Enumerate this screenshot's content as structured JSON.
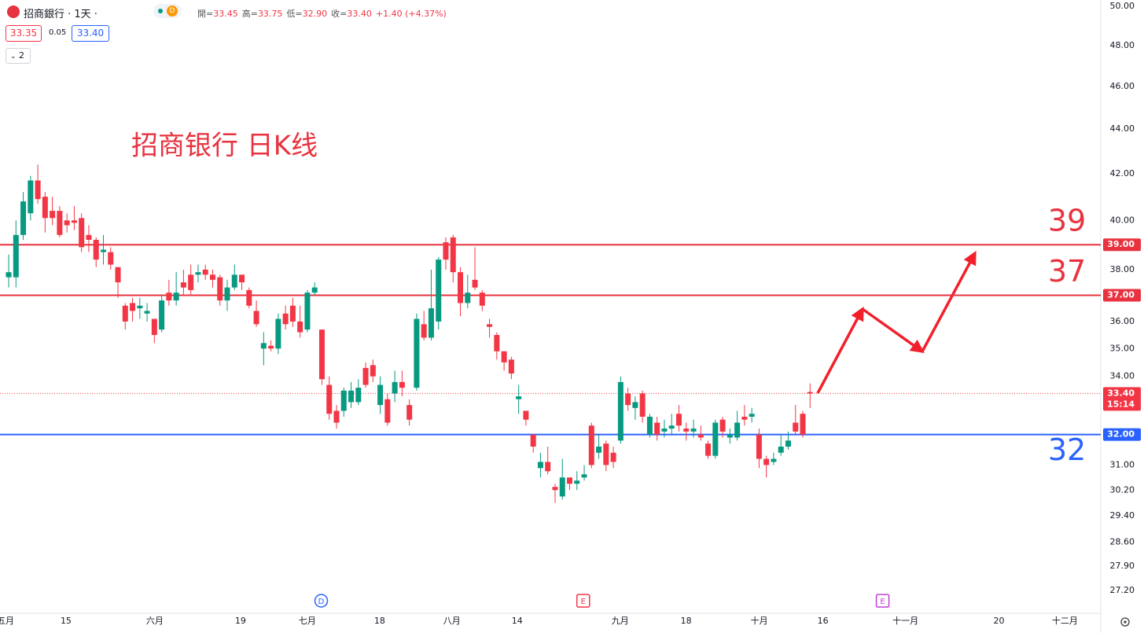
{
  "header": {
    "symbol": "招商銀行 · 1天 ·",
    "badge": "D",
    "ohlc": [
      {
        "label": "開=",
        "value": "33.45"
      },
      {
        "label": "高=",
        "value": "33.75"
      },
      {
        "label": "低=",
        "value": "32.90"
      },
      {
        "label": "收=",
        "value": "33.40"
      }
    ],
    "change": "+1.40 (+4.37%)",
    "bid": "33.35",
    "spread": "0.05",
    "ask": "33.40",
    "indicators": "2"
  },
  "chart_data": {
    "type": "candlestick",
    "title": "招商银行 日K线",
    "open": [
      37.7,
      37.7,
      39.4,
      40.3,
      41.7,
      41.0,
      40.4,
      40.4,
      40.0,
      40.0,
      40.1,
      39.4,
      39.2,
      38.7,
      38.7,
      38.1,
      36.6,
      36.7,
      36.5,
      36.3,
      36.1,
      35.7,
      37.1,
      36.8,
      37.5,
      37.8,
      37.8,
      38.0,
      37.8,
      37.7,
      36.8,
      37.3,
      37.8,
      37.2,
      36.4,
      35.0,
      35.1,
      35.0,
      36.3,
      36.6,
      36.0,
      35.7,
      37.1,
      35.7,
      33.7,
      32.8,
      32.8,
      33.1,
      33.1,
      34.3,
      34.4,
      33.0,
      33.2,
      33.4,
      33.8,
      33.0,
      33.6,
      35.9,
      35.4,
      36.0,
      39.1,
      39.3,
      37.9,
      36.7,
      37.6,
      37.1,
      35.9,
      35.5,
      34.9,
      34.6,
      33.2,
      32.8,
      32.0,
      30.9,
      31.1,
      30.3,
      30.0,
      30.6,
      30.4,
      30.6,
      32.3,
      31.4,
      31.7,
      31.4,
      31.8,
      33.4,
      32.9,
      33.4,
      32.0,
      32.4,
      32.1,
      32.2,
      32.7,
      32.2,
      32.1,
      32.0,
      31.7,
      31.3,
      32.5,
      31.9,
      31.9,
      32.6,
      32.6,
      32.0,
      31.2,
      31.1,
      31.4,
      31.6,
      32.4,
      32.7,
      33.45
    ],
    "high": [
      38.6,
      40.0,
      41.2,
      41.9,
      42.4,
      41.2,
      41.0,
      40.6,
      40.3,
      40.6,
      40.3,
      39.8,
      39.3,
      39.4,
      38.9,
      38.1,
      36.7,
      36.9,
      36.9,
      36.7,
      36.1,
      37.0,
      37.6,
      37.9,
      38.0,
      38.2,
      38.2,
      38.2,
      38.0,
      37.8,
      37.6,
      38.2,
      37.8,
      37.3,
      36.8,
      35.6,
      35.3,
      36.3,
      36.6,
      36.9,
      36.6,
      37.2,
      37.5,
      35.7,
      34.0,
      33.0,
      33.6,
      33.8,
      33.9,
      34.5,
      34.6,
      34.0,
      33.4,
      34.2,
      34.2,
      33.2,
      36.3,
      36.4,
      38.0,
      38.5,
      39.3,
      39.4,
      38.1,
      37.8,
      38.9,
      37.2,
      36.1,
      35.6,
      34.9,
      34.7,
      33.7,
      32.8,
      32.0,
      31.4,
      31.6,
      30.4,
      31.2,
      30.6,
      30.8,
      31.0,
      32.4,
      32.0,
      31.8,
      31.6,
      34.0,
      33.6,
      33.3,
      33.5,
      32.7,
      32.6,
      32.5,
      32.7,
      33.0,
      32.4,
      32.5,
      32.3,
      31.8,
      32.5,
      32.6,
      32.2,
      32.8,
      33.0,
      32.9,
      32.2,
      31.3,
      31.4,
      32.0,
      32.1,
      33.0,
      32.8,
      33.75
    ],
    "low": [
      37.3,
      37.3,
      39.2,
      40.0,
      40.7,
      39.5,
      39.8,
      39.3,
      39.5,
      39.6,
      38.7,
      38.7,
      38.1,
      38.2,
      38.0,
      36.9,
      35.7,
      36.0,
      36.1,
      36.0,
      35.2,
      35.6,
      36.6,
      36.6,
      37.0,
      37.0,
      37.5,
      37.6,
      37.3,
      36.6,
      36.4,
      37.2,
      37.2,
      36.5,
      35.8,
      34.4,
      34.9,
      34.8,
      35.7,
      35.8,
      35.4,
      35.6,
      37.0,
      33.7,
      32.5,
      32.2,
      32.6,
      32.9,
      33.0,
      33.6,
      33.8,
      32.7,
      32.3,
      33.1,
      33.3,
      32.3,
      33.5,
      35.3,
      35.3,
      35.7,
      38.0,
      37.5,
      36.2,
      36.5,
      37.2,
      36.4,
      35.4,
      34.6,
      34.2,
      33.9,
      32.7,
      32.3,
      31.4,
      30.6,
      30.7,
      29.8,
      29.9,
      30.2,
      30.2,
      30.5,
      30.9,
      31.2,
      30.8,
      30.9,
      31.7,
      32.8,
      32.5,
      32.4,
      31.9,
      31.8,
      31.9,
      32.0,
      32.1,
      31.8,
      31.9,
      31.8,
      31.2,
      31.2,
      31.9,
      31.7,
      31.8,
      32.3,
      32.4,
      30.9,
      30.6,
      31.0,
      31.3,
      31.5,
      32.0,
      31.9,
      32.9
    ],
    "close": [
      37.9,
      39.4,
      40.8,
      41.7,
      40.9,
      40.1,
      40.1,
      39.4,
      39.8,
      39.9,
      38.9,
      39.2,
      38.4,
      38.8,
      38.2,
      37.5,
      36.0,
      36.4,
      36.6,
      36.4,
      35.5,
      36.8,
      36.8,
      37.1,
      37.3,
      37.2,
      37.9,
      37.8,
      37.6,
      36.8,
      37.3,
      37.8,
      37.5,
      36.6,
      35.9,
      35.2,
      35.0,
      36.1,
      35.9,
      36.0,
      35.6,
      37.1,
      37.3,
      33.9,
      32.7,
      32.4,
      33.5,
      33.5,
      33.6,
      33.7,
      34.0,
      33.7,
      32.4,
      33.8,
      33.6,
      32.5,
      36.1,
      35.4,
      36.5,
      38.4,
      38.4,
      37.9,
      36.7,
      37.1,
      37.3,
      36.6,
      35.8,
      34.9,
      34.5,
      34.1,
      33.3,
      32.5,
      31.6,
      31.1,
      30.8,
      30.2,
      30.6,
      30.4,
      30.5,
      30.7,
      31.0,
      31.6,
      31.0,
      31.1,
      33.8,
      33.0,
      33.1,
      32.6,
      32.6,
      32.0,
      32.2,
      32.3,
      32.3,
      32.1,
      32.2,
      31.9,
      31.3,
      32.4,
      32.1,
      32.0,
      32.4,
      32.5,
      32.7,
      31.2,
      31.0,
      31.2,
      31.6,
      31.8,
      32.1,
      32.0,
      33.4
    ],
    "up_color": "#089981",
    "down_color": "#f23645",
    "log_scale": true,
    "grid": false,
    "ylim": [
      26.56,
      50.33
    ],
    "yticks": [
      {
        "value": 50,
        "label": "50.00"
      },
      {
        "value": 48,
        "label": "48.00"
      },
      {
        "value": 46,
        "label": "46.00"
      },
      {
        "value": 44,
        "label": "44.00"
      },
      {
        "value": 42,
        "label": "42.00"
      },
      {
        "value": 40,
        "label": "40.00"
      },
      {
        "value": 38,
        "label": "38.00"
      },
      {
        "value": 36,
        "label": "36.00"
      },
      {
        "value": 35,
        "label": "35.00"
      },
      {
        "value": 34,
        "label": "34.00"
      },
      {
        "value": 31,
        "label": "31.00"
      },
      {
        "value": 30.2,
        "label": "30.20"
      },
      {
        "value": 29.4,
        "label": "29.40"
      },
      {
        "value": 28.6,
        "label": "28.60"
      },
      {
        "value": 27.9,
        "label": "27.90"
      },
      {
        "value": 27.2,
        "label": "27.20"
      }
    ],
    "xlim": [
      -1.19,
      149.9
    ],
    "xticks": [
      {
        "value": -0.43,
        "label": "五月"
      },
      {
        "value": 7.87,
        "label": "15"
      },
      {
        "value": 20.06,
        "label": "六月"
      },
      {
        "value": 31.82,
        "label": "19"
      },
      {
        "value": 40.99,
        "label": "七月"
      },
      {
        "value": 50.92,
        "label": "18"
      },
      {
        "value": 60.84,
        "label": "八月"
      },
      {
        "value": 69.8,
        "label": "14"
      },
      {
        "value": 83.93,
        "label": "九月"
      },
      {
        "value": 92.99,
        "label": "18"
      },
      {
        "value": 103.02,
        "label": "十月"
      },
      {
        "value": 111.76,
        "label": "16"
      },
      {
        "value": 123.09,
        "label": "十一月"
      },
      {
        "value": 135.92,
        "label": "20"
      },
      {
        "value": 144.98,
        "label": "十二月"
      }
    ],
    "levels": [
      {
        "value": 39,
        "label": "39.00",
        "annotation": "39",
        "color": "#e8323f"
      },
      {
        "value": 37,
        "label": "37.00",
        "annotation": "37",
        "color": "#e8323f"
      },
      {
        "value": 32,
        "label": "32.00",
        "annotation": "32",
        "color": "#2962ff"
      }
    ],
    "last_price": {
      "value": 33.4,
      "label": "33.40",
      "time": "15:14",
      "color": "#f23645"
    },
    "events": [
      {
        "x": 42.9,
        "label": "D",
        "color": "#2962ff"
      },
      {
        "x": 78.86,
        "label": "E",
        "color": "#f23645"
      },
      {
        "x": 119.96,
        "label": "E",
        "color": "#c33ed8"
      }
    ]
  }
}
